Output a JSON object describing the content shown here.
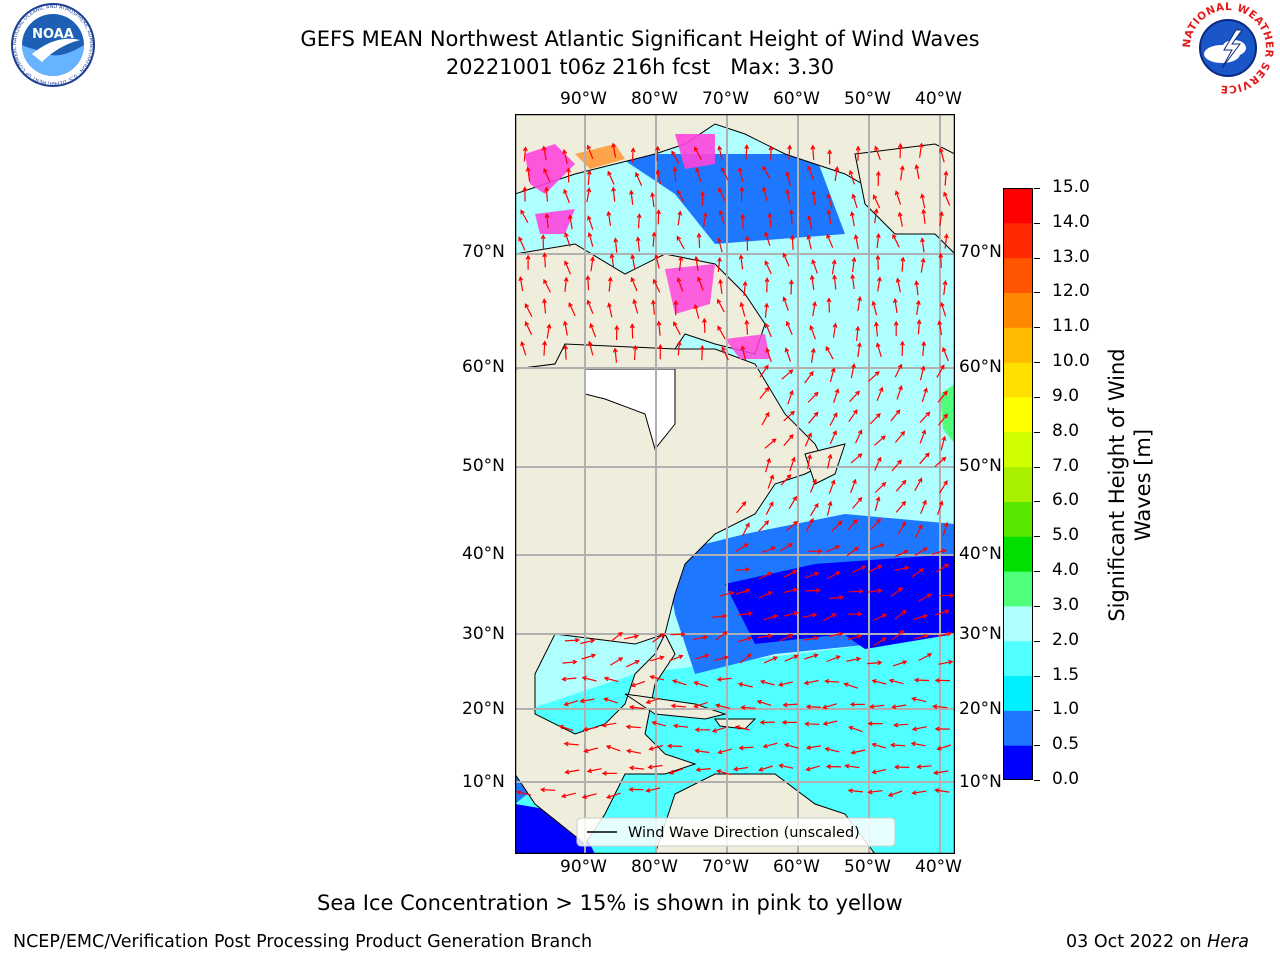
{
  "header": {
    "title_line1": "GEFS MEAN Northwest Atlantic Significant Height of Wind Waves",
    "title_line2": "20221001 t06z 216h fcst   Max: 3.30"
  },
  "logos": {
    "left": "NOAA",
    "left_ring_text": "NATIONAL OCEANIC AND ATMOSPHERIC ADMINISTRATION · U.S. DEPARTMENT OF COMMERCE",
    "right_ring_text": "NATIONAL WEATHER SERVICE"
  },
  "map": {
    "lon_labels": [
      "90°W",
      "80°W",
      "70°W",
      "60°W",
      "50°W",
      "40°W"
    ],
    "lat_labels": [
      "70°N",
      "60°N",
      "50°N",
      "40°N",
      "30°N",
      "20°N",
      "10°N"
    ],
    "legend_label": "Wind Wave Direction (unscaled)",
    "land_color": "#efeddc",
    "arrow_color": "#ff0000"
  },
  "colorbar": {
    "label_line1": "Significant Height of Wind",
    "label_line2": "Waves [m]",
    "ticks": [
      "0.0",
      "0.5",
      "1.0",
      "1.5",
      "2.0",
      "3.0",
      "4.0",
      "5.0",
      "6.0",
      "7.0",
      "8.0",
      "9.0",
      "10.0",
      "11.0",
      "12.0",
      "13.0",
      "14.0",
      "15.0"
    ],
    "colors": [
      "#0000ff",
      "#1e78ff",
      "#00f0ff",
      "#50ffff",
      "#b0ffff",
      "#50ff7a",
      "#00e000",
      "#58e800",
      "#a8f000",
      "#d0ff00",
      "#ffff00",
      "#ffe000",
      "#ffbb00",
      "#ff8800",
      "#ff5500",
      "#ff2a00",
      "#ff0000"
    ]
  },
  "note": "Sea Ice Concentration > 15% is shown in pink to yellow",
  "footer": {
    "left": "NCEP/EMC/Verification Post Processing Product Generation Branch",
    "right_date": "03 Oct 2022 on ",
    "right_machine": "Hera"
  }
}
